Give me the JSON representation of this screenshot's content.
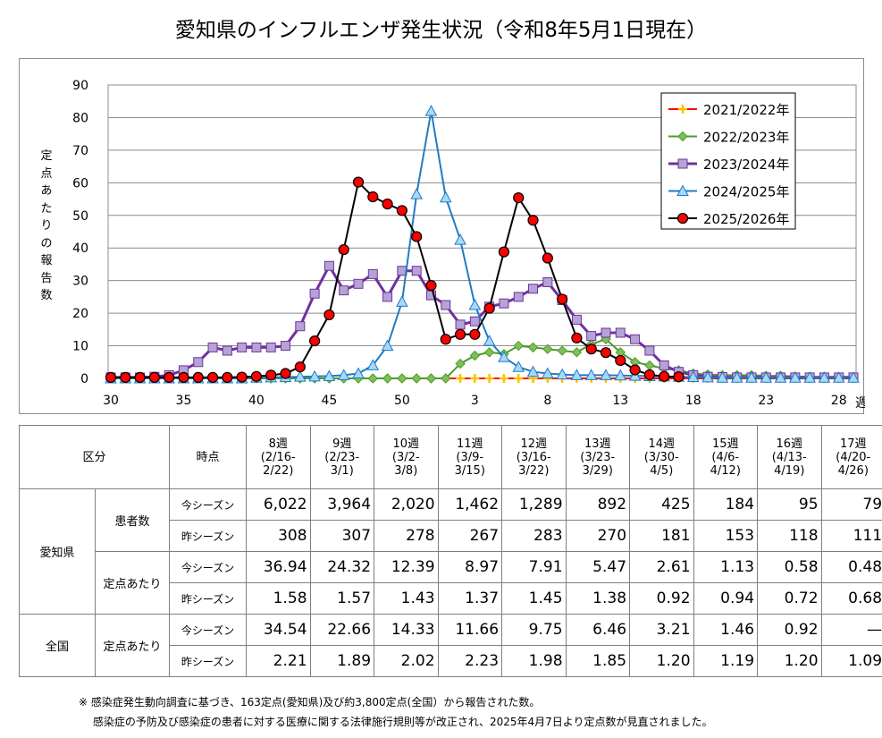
{
  "title": "愛知県のインフルエンザ発生状況（令和8年5月1日現在）",
  "chart_data": {
    "type": "line",
    "ylabel": "定点あたりの報告数",
    "x_unit": "週",
    "xticks": [
      "30",
      "35",
      "40",
      "45",
      "50",
      "3",
      "8",
      "13",
      "18",
      "23",
      "28"
    ],
    "ylim": [
      0,
      90
    ],
    "yticks": [
      0,
      10,
      20,
      30,
      40,
      50,
      60,
      70,
      80,
      90
    ],
    "legend_position": "top-right",
    "weeks": [
      "30",
      "31",
      "32",
      "33",
      "34",
      "35",
      "36",
      "37",
      "38",
      "39",
      "40",
      "41",
      "42",
      "43",
      "44",
      "45",
      "46",
      "47",
      "48",
      "49",
      "50",
      "51",
      "52",
      "1",
      "2",
      "3",
      "4",
      "5",
      "6",
      "7",
      "8",
      "9",
      "10",
      "11",
      "12",
      "13",
      "14",
      "15",
      "16",
      "17",
      "18",
      "19",
      "20",
      "21",
      "22",
      "23",
      "24",
      "25",
      "26",
      "27",
      "28",
      "29"
    ],
    "series": [
      {
        "name": "2021/2022年",
        "color": "#ff0000",
        "marker": "plus",
        "values": [
          0,
          0,
          0,
          0,
          0,
          0,
          0,
          0,
          0,
          0,
          0,
          0,
          0,
          0,
          0,
          0,
          0,
          0,
          0,
          0,
          0,
          0,
          0,
          0,
          0,
          0,
          0,
          0,
          0,
          0,
          0,
          0,
          0,
          0,
          0,
          0,
          0,
          0,
          0,
          0,
          0,
          0,
          0,
          0,
          0,
          0,
          0,
          0,
          0,
          0,
          0,
          0
        ]
      },
      {
        "name": "2022/2023年",
        "color": "#4e9a2d",
        "marker": "diamond",
        "values": [
          0,
          0,
          0,
          0,
          0,
          0,
          0,
          0,
          0,
          0,
          0,
          0,
          0,
          0,
          0,
          0,
          0,
          0,
          0,
          0,
          0,
          0,
          0,
          0,
          4.5,
          7,
          8,
          7.5,
          10,
          9.5,
          9,
          8.5,
          8,
          10.5,
          12,
          8,
          5,
          4,
          3,
          2.5,
          1.5,
          1.2,
          1,
          1,
          1,
          0.8,
          0.8,
          0.6,
          0.5,
          0.5,
          0.5,
          0.5
        ]
      },
      {
        "name": "2023/2024年",
        "color": "#7030a0",
        "marker": "square",
        "values": [
          0.3,
          0.3,
          0.3,
          0.5,
          1,
          2.5,
          5,
          9.5,
          8.5,
          9.5,
          9.5,
          9.5,
          10,
          16,
          26,
          34.5,
          27,
          29,
          32,
          25,
          33,
          33,
          25.5,
          22.5,
          16.5,
          17.5,
          22,
          23,
          25,
          27.5,
          29.5,
          24,
          18,
          13,
          14,
          14,
          12,
          8.5,
          4,
          2,
          1,
          0.5,
          0.4,
          0.3,
          0.3,
          0.3,
          0.3,
          0.3,
          0.3,
          0.3,
          0.3,
          0.3
        ]
      },
      {
        "name": "2024/2025年",
        "color": "#1f7cc4",
        "marker": "triangle",
        "values": [
          0,
          0,
          0,
          0,
          0,
          0,
          0,
          0,
          0,
          0,
          0.2,
          0.3,
          0.4,
          0.5,
          0.6,
          0.7,
          1,
          1.5,
          4,
          10,
          23.5,
          56.5,
          82,
          55.5,
          42.5,
          22.5,
          11.5,
          6.5,
          3.5,
          2,
          1.5,
          1.2,
          1,
          1,
          1,
          0.9,
          0.8,
          0.7,
          0.6,
          0.5,
          0.4,
          0.3,
          0.2,
          0.2,
          0.2,
          0.2,
          0.2,
          0.2,
          0.2,
          0.2,
          0.2,
          0.2
        ]
      },
      {
        "name": "2025/2026年",
        "color": "#000000",
        "markerFill": "#ff0000",
        "marker": "circle",
        "values": [
          0.3,
          0.3,
          0.3,
          0.3,
          0.3,
          0.3,
          0.3,
          0.3,
          0.3,
          0.4,
          0.6,
          1,
          1.5,
          3.5,
          11.5,
          19.5,
          39.5,
          60.2,
          55.7,
          53.5,
          51.5,
          43.5,
          28.5,
          12,
          13.5,
          13.5,
          21.5,
          38.8,
          55.4,
          48.5,
          36.9,
          24.3,
          12.4,
          9.0,
          7.9,
          5.5,
          2.6,
          1.1,
          0.6,
          0.5
        ]
      }
    ]
  },
  "table": {
    "header": {
      "category": "区分",
      "timepoint": "時点",
      "weeks": [
        [
          "8週",
          "(2/16-",
          "2/22)"
        ],
        [
          "9週",
          "(2/23-",
          "3/1)"
        ],
        [
          "10週",
          "(3/2-",
          "3/8)"
        ],
        [
          "11週",
          "(3/9-",
          "3/15)"
        ],
        [
          "12週",
          "(3/16-",
          "3/22)"
        ],
        [
          "13週",
          "(3/23-",
          "3/29)"
        ],
        [
          "14週",
          "(3/30-",
          "4/5)"
        ],
        [
          "15週",
          "(4/6-",
          "4/12)"
        ],
        [
          "16週",
          "(4/13-",
          "4/19)"
        ],
        [
          "17週",
          "(4/20-",
          "4/26)"
        ]
      ]
    },
    "aichi_label": "愛知県",
    "national_label": "全国",
    "patients_label": "患者数",
    "per_sentinel_label": "定点あたり",
    "this_season": "今シーズン",
    "last_season": "昨シーズン",
    "aichi_patients_this": [
      "6,022",
      "3,964",
      "2,020",
      "1,462",
      "1,289",
      "892",
      "425",
      "184",
      "95",
      "79"
    ],
    "aichi_patients_last": [
      "308",
      "307",
      "278",
      "267",
      "283",
      "270",
      "181",
      "153",
      "118",
      "111"
    ],
    "aichi_per_this": [
      "36.94",
      "24.32",
      "12.39",
      "8.97",
      "7.91",
      "5.47",
      "2.61",
      "1.13",
      "0.58",
      "0.48"
    ],
    "aichi_per_last": [
      "1.58",
      "1.57",
      "1.43",
      "1.37",
      "1.45",
      "1.38",
      "0.92",
      "0.94",
      "0.72",
      "0.68"
    ],
    "national_per_this": [
      "34.54",
      "22.66",
      "14.33",
      "11.66",
      "9.75",
      "6.46",
      "3.21",
      "1.46",
      "0.92",
      "—"
    ],
    "national_per_last": [
      "2.21",
      "1.89",
      "2.02",
      "2.23",
      "1.98",
      "1.85",
      "1.20",
      "1.19",
      "1.20",
      "1.09"
    ]
  },
  "notes": [
    "※ 感染症発生動向調査に基づき、163定点(愛知県)及び約3,800定点(全国）から報告された数。",
    "　 感染症の予防及び感染症の患者に対する医療に関する法律施行規則等が改正され、2025年4月7日より定点数が見直されました。"
  ]
}
